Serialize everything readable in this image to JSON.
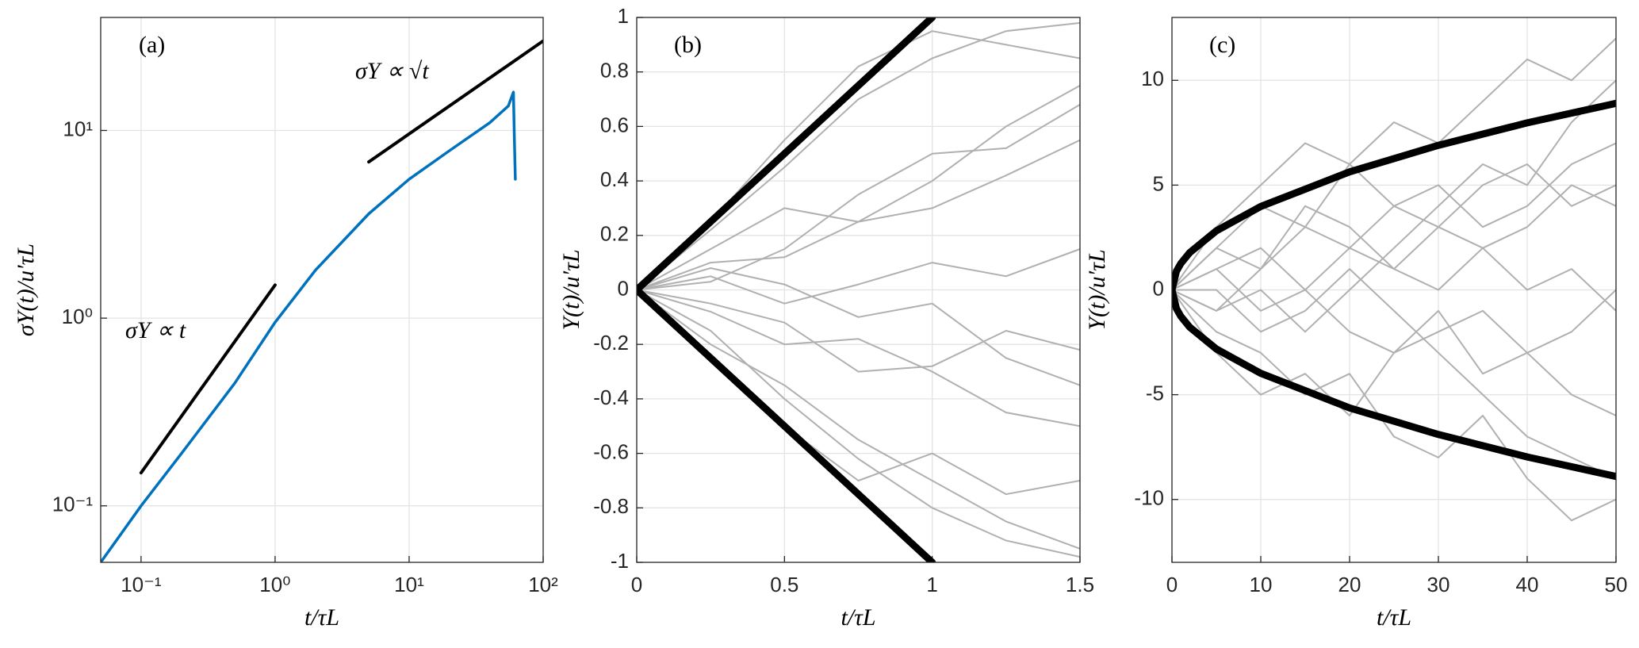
{
  "chart_data": [
    {
      "type": "line",
      "xscale": "log",
      "yscale": "log",
      "grid": true,
      "xlabel": "t/τL",
      "ylabel": "σY(t)/u′τL",
      "annotations": [
        "(a)",
        "σY ∝ t",
        "σY ∝ √t"
      ],
      "xlim": [
        0.05,
        100
      ],
      "ylim": [
        0.05,
        40
      ],
      "xticks": [
        {
          "value": 0.1,
          "label": "10⁻¹"
        },
        {
          "value": 1,
          "label": "10⁰"
        },
        {
          "value": 10,
          "label": "10¹"
        },
        {
          "value": 100,
          "label": "10²"
        }
      ],
      "yticks": [
        {
          "value": 0.1,
          "label": "10⁻¹"
        },
        {
          "value": 1,
          "label": "10⁰"
        },
        {
          "value": 10,
          "label": "10¹"
        }
      ],
      "series": [
        {
          "color": "#0072bd",
          "x": [
            0.05,
            0.1,
            0.2,
            0.5,
            1,
            2,
            5,
            10,
            20,
            40,
            55,
            60,
            61,
            62
          ],
          "values": [
            0.05,
            0.1,
            0.19,
            0.45,
            0.95,
            1.8,
            3.6,
            5.5,
            7.8,
            11,
            13.5,
            16,
            9,
            5.5
          ]
        },
        {
          "color": "#000000",
          "x": [
            0.1,
            1
          ],
          "values": [
            0.15,
            1.5
          ]
        },
        {
          "color": "#000000",
          "x": [
            5,
            100
          ],
          "values": [
            6.8,
            30
          ]
        }
      ]
    },
    {
      "type": "line",
      "grid": true,
      "xlabel": "t/τL",
      "ylabel": "Y(t)/u′τL",
      "annotations": [
        "(b)"
      ],
      "xlim": [
        0,
        1.5
      ],
      "ylim": [
        -1,
        1
      ],
      "xticks": [
        0,
        0.5,
        1,
        1.5
      ],
      "yticks": [
        -1,
        -0.8,
        -0.6,
        -0.4,
        -0.2,
        0,
        0.2,
        0.4,
        0.6,
        0.8,
        1
      ],
      "x": [
        0,
        0.25,
        0.5,
        0.75,
        1,
        1.25,
        1.5
      ],
      "series": [
        {
          "color": "#b0b0b0",
          "values": [
            0,
            0.22,
            0.45,
            0.7,
            0.85,
            0.95,
            0.98
          ]
        },
        {
          "color": "#b0b0b0",
          "values": [
            0,
            -0.2,
            -0.35,
            -0.55,
            -0.7,
            -0.85,
            -0.95
          ]
        },
        {
          "color": "#b0b0b0",
          "values": [
            0,
            0.1,
            0.12,
            0.25,
            0.3,
            0.42,
            0.55
          ]
        },
        {
          "color": "#b0b0b0",
          "values": [
            0,
            -0.08,
            -0.2,
            -0.18,
            -0.3,
            -0.45,
            -0.5
          ]
        },
        {
          "color": "#b0b0b0",
          "values": [
            0,
            0.05,
            -0.05,
            0.02,
            0.1,
            0.05,
            0.15
          ]
        },
        {
          "color": "#b0b0b0",
          "values": [
            0,
            0.15,
            0.3,
            0.25,
            0.4,
            0.6,
            0.75
          ]
        },
        {
          "color": "#b0b0b0",
          "values": [
            0,
            -0.15,
            -0.4,
            -0.62,
            -0.8,
            -0.92,
            -0.98
          ]
        },
        {
          "color": "#b0b0b0",
          "values": [
            0,
            0.03,
            0.15,
            0.35,
            0.5,
            0.52,
            0.68
          ]
        },
        {
          "color": "#b0b0b0",
          "values": [
            0,
            -0.05,
            -0.12,
            -0.3,
            -0.28,
            -0.15,
            -0.22
          ]
        },
        {
          "color": "#b0b0b0",
          "values": [
            0,
            0.08,
            0.02,
            -0.1,
            -0.05,
            -0.25,
            -0.35
          ]
        },
        {
          "color": "#b0b0b0",
          "values": [
            0,
            0.25,
            0.55,
            0.82,
            0.95,
            0.9,
            0.85
          ]
        },
        {
          "color": "#b0b0b0",
          "values": [
            0,
            -0.25,
            -0.5,
            -0.7,
            -0.6,
            -0.75,
            -0.7
          ]
        },
        {
          "color": "#000000",
          "x": [
            0,
            1
          ],
          "values": [
            0,
            1
          ]
        },
        {
          "color": "#000000",
          "x": [
            0,
            1
          ],
          "values": [
            0,
            -1
          ]
        }
      ]
    },
    {
      "type": "line",
      "grid": true,
      "xlabel": "t/τL",
      "ylabel": "Y(t)/u′τL",
      "annotations": [
        "(c)"
      ],
      "xlim": [
        0,
        50
      ],
      "ylim": [
        -13,
        13
      ],
      "xticks": [
        0,
        10,
        20,
        30,
        40,
        50
      ],
      "yticks": [
        -10,
        -5,
        0,
        5,
        10
      ],
      "x": [
        0,
        5,
        10,
        15,
        20,
        25,
        30,
        35,
        40,
        45,
        50
      ],
      "series": [
        {
          "color": "#b0b0b0",
          "values": [
            0,
            2,
            4,
            3,
            6,
            8,
            7,
            9,
            11,
            10,
            12
          ]
        },
        {
          "color": "#b0b0b0",
          "values": [
            0,
            -2,
            -3,
            -5,
            -4,
            -7,
            -8,
            -6,
            -9,
            -11,
            -10
          ]
        },
        {
          "color": "#b0b0b0",
          "values": [
            0,
            1,
            -1,
            0,
            2,
            1,
            3,
            2,
            0,
            1,
            -1
          ]
        },
        {
          "color": "#b0b0b0",
          "values": [
            0,
            -1,
            1,
            3,
            2,
            4,
            3,
            5,
            6,
            4,
            5
          ]
        },
        {
          "color": "#b0b0b0",
          "values": [
            0,
            1,
            2,
            0,
            -2,
            -3,
            -1,
            -4,
            -3,
            -5,
            -6
          ]
        },
        {
          "color": "#b0b0b0",
          "values": [
            0,
            3,
            5,
            7,
            6,
            4,
            5,
            3,
            4,
            6,
            7
          ]
        },
        {
          "color": "#b0b0b0",
          "values": [
            0,
            -3,
            -5,
            -4,
            -6,
            -3,
            -2,
            -1,
            -3,
            -2,
            0
          ]
        },
        {
          "color": "#b0b0b0",
          "values": [
            0,
            0,
            -2,
            -1,
            1,
            -1,
            -3,
            -5,
            -7,
            -8,
            -9
          ]
        },
        {
          "color": "#b0b0b0",
          "values": [
            0,
            2,
            1,
            4,
            3,
            1,
            0,
            2,
            3,
            5,
            4
          ]
        },
        {
          "color": "#b0b0b0",
          "values": [
            0,
            -1,
            0,
            -2,
            0,
            2,
            4,
            6,
            5,
            8,
            10
          ]
        },
        {
          "color": "#000000",
          "x": [
            0,
            0.5,
            1,
            2,
            5,
            10,
            20,
            30,
            40,
            50
          ],
          "values": [
            0,
            0.89,
            1.26,
            1.78,
            2.82,
            3.98,
            5.63,
            6.9,
            7.97,
            8.9
          ]
        },
        {
          "color": "#000000",
          "x": [
            0,
            0.5,
            1,
            2,
            5,
            10,
            20,
            30,
            40,
            50
          ],
          "values": [
            0,
            -0.89,
            -1.26,
            -1.78,
            -2.82,
            -3.98,
            -5.63,
            -6.9,
            -7.97,
            -8.9
          ]
        }
      ]
    }
  ]
}
